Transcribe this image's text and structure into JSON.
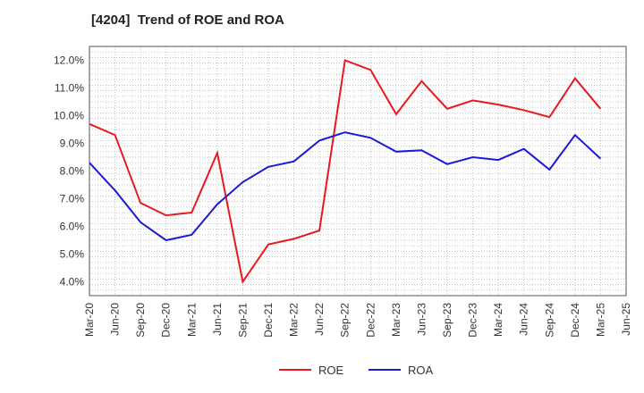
{
  "chart_data": {
    "type": "line",
    "title": "[4204]  Trend of ROE and ROA",
    "categories": [
      "Mar-20",
      "Jun-20",
      "Sep-20",
      "Dec-20",
      "Mar-21",
      "Jun-21",
      "Sep-21",
      "Dec-21",
      "Mar-22",
      "Jun-22",
      "Sep-22",
      "Dec-22",
      "Mar-23",
      "Jun-23",
      "Sep-23",
      "Dec-23",
      "Mar-24",
      "Jun-24",
      "Sep-24",
      "Dec-24",
      "Mar-25",
      "Jun-25"
    ],
    "series": [
      {
        "name": "ROE",
        "color": "#e8191f",
        "values": [
          9.7,
          9.3,
          6.85,
          6.4,
          6.5,
          8.65,
          4.0,
          5.35,
          5.55,
          5.85,
          12.0,
          11.65,
          10.05,
          11.25,
          10.25,
          10.55,
          10.4,
          10.2,
          9.95,
          11.35,
          10.25,
          null
        ]
      },
      {
        "name": "ROA",
        "color": "#1a1ad8",
        "values": [
          8.3,
          7.3,
          6.15,
          5.5,
          5.7,
          6.8,
          7.6,
          8.15,
          8.35,
          9.1,
          9.4,
          9.2,
          8.7,
          8.75,
          8.25,
          8.5,
          8.4,
          8.8,
          8.05,
          9.3,
          8.45,
          null
        ]
      }
    ],
    "ylim": [
      3.5,
      12.5
    ],
    "yticks": [
      4.0,
      5.0,
      6.0,
      7.0,
      8.0,
      9.0,
      10.0,
      11.0,
      12.0
    ],
    "ytick_labels": [
      "4.0%",
      "5.0%",
      "6.0%",
      "7.0%",
      "8.0%",
      "9.0%",
      "10.0%",
      "11.0%",
      "12.0%"
    ],
    "xlabel": "",
    "ylabel": "",
    "grid": true,
    "legend_position": "bottom-center"
  }
}
